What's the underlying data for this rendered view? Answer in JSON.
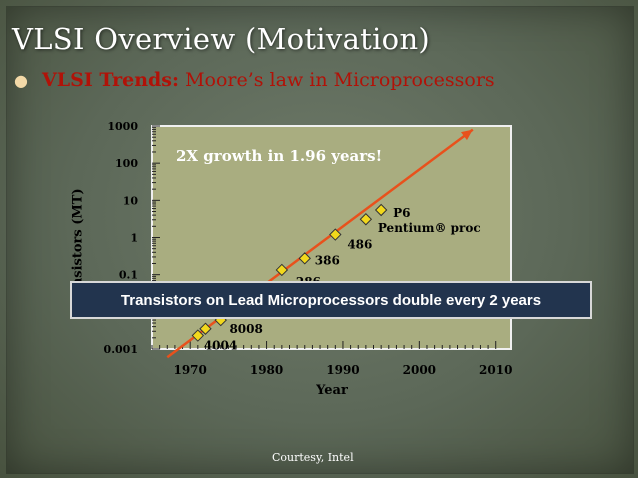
{
  "slide": {
    "title": "VLSI Overview (Motivation)",
    "bullet_key": "VLSI Trends:",
    "bullet_text": "Moore’s law in Microprocessors",
    "banner": "Transistors on Lead Microprocessors double every 2 years",
    "courtesy": "Courtesy, Intel"
  },
  "chart_data": {
    "type": "scatter",
    "xlabel": "Year",
    "ylabel": "ansistors (MT)",
    "xlim": [
      1965,
      2012
    ],
    "ylim": [
      0.001,
      1000
    ],
    "yscale": "log",
    "xticks": [
      "1970",
      "1980",
      "1990",
      "2000",
      "2010"
    ],
    "yticks": [
      "1000",
      "100",
      "10",
      "1",
      "0.1",
      "0.001"
    ],
    "annotation": "2X growth in 1.96 years!",
    "points": [
      {
        "label": "4004",
        "x": 1971,
        "y": 0.0023
      },
      {
        "label": "8008",
        "x": 1972,
        "y": 0.0035
      },
      {
        "label": "",
        "x": 1974,
        "y": 0.006
      },
      {
        "label": "286",
        "x": 1982,
        "y": 0.134
      },
      {
        "label": "386",
        "x": 1985,
        "y": 0.275
      },
      {
        "label": "486",
        "x": 1989,
        "y": 1.2
      },
      {
        "label": "Pentium® proc",
        "x": 1993,
        "y": 3.1
      },
      {
        "label": "P6",
        "x": 1995,
        "y": 5.5
      }
    ],
    "trend": {
      "x": [
        1967,
        2007
      ],
      "y": [
        0.0006,
        800
      ]
    },
    "colors": {
      "plot_bg": "#a9ad80",
      "trend": "#e8511c",
      "marker": "#f2d81c",
      "annotation": "#ffffff"
    }
  }
}
